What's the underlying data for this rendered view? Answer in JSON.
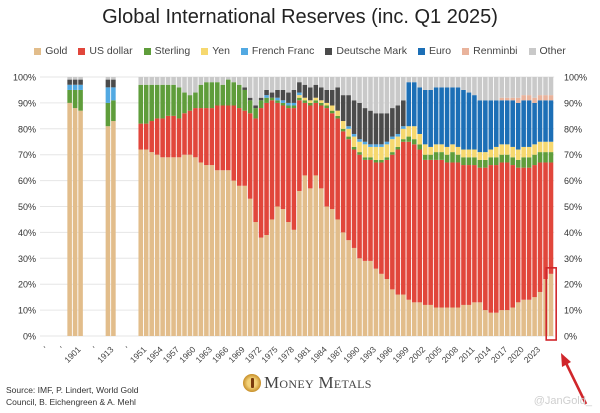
{
  "chart_data": {
    "type": "bar",
    "stacked": true,
    "title": "Global International Reserves (inc. Q1 2025)",
    "ylim": [
      0,
      100
    ],
    "y_ticks": [
      "0%",
      "10%",
      "20%",
      "30%",
      "40%",
      "50%",
      "60%",
      "70%",
      "80%",
      "90%",
      "100%"
    ],
    "grid": true,
    "legend_position": "top",
    "series": [
      {
        "name": "Gold",
        "color": "#E2BD8B"
      },
      {
        "name": "US dollar",
        "color": "#E1463B"
      },
      {
        "name": "Sterling",
        "color": "#5F9D3B"
      },
      {
        "name": "Yen",
        "color": "#F6D86F"
      },
      {
        "name": "French Franc",
        "color": "#52A9E2"
      },
      {
        "name": "Deutsche Mark",
        "color": "#4B4B4B"
      },
      {
        "name": "Euro",
        "color": "#1C6FB6"
      },
      {
        "name": "Renminbi",
        "color": "#E9B39C"
      },
      {
        "name": "Other",
        "color": "#C9C9C9"
      }
    ],
    "x_tick_labels": [
      "'",
      "'",
      "1901",
      "'",
      "1913",
      "'",
      "1951",
      "1954",
      "1957",
      "1960",
      "1963",
      "1966",
      "1969",
      "1972",
      "1975",
      "1978",
      "1981",
      "1984",
      "1987",
      "1990",
      "1993",
      "1996",
      "1999",
      "2002",
      "2005",
      "2008",
      "2011",
      "2014",
      "2017",
      "2020",
      "2023"
    ],
    "bars": [
      {
        "year": 1899,
        "values": [
          90,
          0,
          5,
          0,
          2,
          2,
          0,
          0,
          1
        ]
      },
      {
        "year": 1900,
        "values": [
          88,
          0,
          7,
          0,
          2,
          2,
          0,
          0,
          1
        ]
      },
      {
        "year": 1901,
        "values": [
          87,
          0,
          8,
          0,
          2,
          2,
          0,
          0,
          1
        ]
      },
      {
        "year": 1912,
        "values": [
          81,
          0,
          9,
          0,
          6,
          3,
          0,
          0,
          1
        ]
      },
      {
        "year": 1913,
        "values": [
          83,
          0,
          8,
          0,
          5,
          3,
          0,
          0,
          1
        ]
      },
      {
        "year": 1950,
        "values": [
          72,
          10,
          15,
          0,
          0,
          0,
          0,
          0,
          3
        ]
      },
      {
        "year": 1951,
        "values": [
          72,
          10,
          15,
          0,
          0,
          0,
          0,
          0,
          3
        ]
      },
      {
        "year": 1952,
        "values": [
          71,
          12,
          14,
          0,
          0,
          0,
          0,
          0,
          3
        ]
      },
      {
        "year": 1953,
        "values": [
          70,
          14,
          13,
          0,
          0,
          0,
          0,
          0,
          3
        ]
      },
      {
        "year": 1954,
        "values": [
          69,
          15,
          13,
          0,
          0,
          0,
          0,
          0,
          3
        ]
      },
      {
        "year": 1955,
        "values": [
          69,
          16,
          12,
          0,
          0,
          0,
          0,
          0,
          3
        ]
      },
      {
        "year": 1956,
        "values": [
          69,
          16,
          12,
          0,
          0,
          0,
          0,
          0,
          3
        ]
      },
      {
        "year": 1957,
        "values": [
          69,
          15,
          12,
          0,
          0,
          0,
          0,
          0,
          4
        ]
      },
      {
        "year": 1958,
        "values": [
          70,
          16,
          8,
          0,
          0,
          0,
          0,
          0,
          6
        ]
      },
      {
        "year": 1959,
        "values": [
          70,
          17,
          6,
          0,
          0,
          0,
          0,
          0,
          7
        ]
      },
      {
        "year": 1960,
        "values": [
          69,
          19,
          6,
          0,
          0,
          0,
          0,
          0,
          6
        ]
      },
      {
        "year": 1961,
        "values": [
          67,
          21,
          9,
          0,
          0,
          0,
          0,
          0,
          3
        ]
      },
      {
        "year": 1962,
        "values": [
          66,
          22,
          10,
          0,
          0,
          0,
          0,
          0,
          2
        ]
      },
      {
        "year": 1963,
        "values": [
          66,
          22,
          10,
          0,
          0,
          0,
          0,
          0,
          2
        ]
      },
      {
        "year": 1964,
        "values": [
          64,
          25,
          9,
          0,
          0,
          0,
          0,
          0,
          2
        ]
      },
      {
        "year": 1965,
        "values": [
          64,
          25,
          8,
          0,
          0,
          0,
          0,
          0,
          3
        ]
      },
      {
        "year": 1966,
        "values": [
          64,
          25,
          10,
          0,
          0,
          0,
          0,
          0,
          1
        ]
      },
      {
        "year": 1967,
        "values": [
          60,
          29,
          9,
          0,
          0,
          0,
          0,
          0,
          2
        ]
      },
      {
        "year": 1968,
        "values": [
          58,
          30,
          9,
          0,
          0,
          0,
          0,
          0,
          3
        ]
      },
      {
        "year": 1969,
        "values": [
          58,
          29,
          8,
          0,
          0,
          1,
          0,
          0,
          4
        ]
      },
      {
        "year": 1970,
        "values": [
          53,
          33,
          5,
          0,
          0,
          1,
          0,
          0,
          8
        ]
      },
      {
        "year": 1971,
        "values": [
          44,
          40,
          4,
          0,
          0,
          1,
          0,
          0,
          11
        ]
      },
      {
        "year": 1972,
        "values": [
          38,
          50,
          3,
          0,
          0,
          1,
          0,
          0,
          8
        ]
      },
      {
        "year": 1973,
        "values": [
          39,
          51,
          2,
          0,
          1,
          2,
          0,
          0,
          5
        ]
      },
      {
        "year": 1974,
        "values": [
          45,
          46,
          1,
          0,
          0,
          2,
          0,
          0,
          6
        ]
      },
      {
        "year": 1975,
        "values": [
          50,
          40,
          1,
          0,
          1,
          3,
          0,
          0,
          5
        ]
      },
      {
        "year": 1976,
        "values": [
          49,
          40,
          1,
          0,
          1,
          4,
          0,
          0,
          5
        ]
      },
      {
        "year": 1977,
        "values": [
          44,
          44,
          1,
          0,
          1,
          4,
          0,
          0,
          6
        ]
      },
      {
        "year": 1978,
        "values": [
          41,
          47,
          1,
          0,
          1,
          5,
          0,
          0,
          5
        ]
      },
      {
        "year": 1979,
        "values": [
          56,
          35,
          1,
          1,
          1,
          4,
          0,
          0,
          2
        ]
      },
      {
        "year": 1980,
        "values": [
          62,
          28,
          1,
          1,
          0,
          5,
          0,
          0,
          3
        ]
      },
      {
        "year": 1981,
        "values": [
          57,
          32,
          1,
          1,
          0,
          5,
          0,
          0,
          4
        ]
      },
      {
        "year": 1982,
        "values": [
          62,
          28,
          1,
          1,
          0,
          5,
          0,
          0,
          3
        ]
      },
      {
        "year": 1983,
        "values": [
          57,
          32,
          1,
          1,
          0,
          5,
          0,
          0,
          4
        ]
      },
      {
        "year": 1984,
        "values": [
          50,
          38,
          1,
          1,
          0,
          5,
          0,
          0,
          5
        ]
      },
      {
        "year": 1985,
        "values": [
          49,
          37,
          1,
          2,
          0,
          6,
          0,
          0,
          5
        ]
      },
      {
        "year": 1986,
        "values": [
          45,
          39,
          1,
          2,
          0,
          9,
          0,
          0,
          4
        ]
      },
      {
        "year": 1987,
        "values": [
          40,
          39,
          1,
          3,
          0,
          10,
          0,
          0,
          7
        ]
      },
      {
        "year": 1988,
        "values": [
          37,
          39,
          1,
          3,
          1,
          12,
          0,
          0,
          7
        ]
      },
      {
        "year": 1989,
        "values": [
          34,
          38,
          1,
          4,
          1,
          13,
          0,
          0,
          9
        ]
      },
      {
        "year": 1990,
        "values": [
          30,
          40,
          1,
          4,
          1,
          14,
          0,
          0,
          10
        ]
      },
      {
        "year": 1991,
        "values": [
          29,
          39,
          1,
          5,
          1,
          13,
          0,
          0,
          12
        ]
      },
      {
        "year": 1992,
        "values": [
          29,
          39,
          1,
          4,
          1,
          13,
          0,
          0,
          13
        ]
      },
      {
        "year": 1993,
        "values": [
          26,
          41,
          1,
          5,
          1,
          12,
          0,
          0,
          14
        ]
      },
      {
        "year": 1994,
        "values": [
          24,
          43,
          1,
          5,
          1,
          12,
          0,
          0,
          14
        ]
      },
      {
        "year": 1995,
        "values": [
          22,
          46,
          1,
          5,
          1,
          11,
          0,
          0,
          14
        ]
      },
      {
        "year": 1996,
        "values": [
          18,
          52,
          1,
          5,
          1,
          11,
          0,
          0,
          12
        ]
      },
      {
        "year": 1997,
        "values": [
          16,
          56,
          1,
          4,
          1,
          11,
          0,
          0,
          11
        ]
      },
      {
        "year": 1998,
        "values": [
          16,
          59,
          1,
          4,
          1,
          10,
          0,
          0,
          9
        ]
      },
      {
        "year": 1999,
        "values": [
          14,
          61,
          2,
          4,
          0,
          0,
          17,
          0,
          2
        ]
      },
      {
        "year": 2000,
        "values": [
          13,
          61,
          2,
          5,
          0,
          0,
          17,
          0,
          2
        ]
      },
      {
        "year": 2001,
        "values": [
          13,
          59,
          2,
          4,
          0,
          0,
          18,
          0,
          4
        ]
      },
      {
        "year": 2002,
        "values": [
          12,
          56,
          2,
          4,
          0,
          0,
          21,
          0,
          5
        ]
      },
      {
        "year": 2003,
        "values": [
          12,
          56,
          2,
          3,
          0,
          0,
          22,
          0,
          5
        ]
      },
      {
        "year": 2004,
        "values": [
          11,
          57,
          3,
          3,
          0,
          0,
          22,
          0,
          4
        ]
      },
      {
        "year": 2005,
        "values": [
          11,
          57,
          3,
          3,
          0,
          0,
          22,
          0,
          4
        ]
      },
      {
        "year": 2006,
        "values": [
          11,
          56,
          3,
          3,
          0,
          0,
          23,
          0,
          4
        ]
      },
      {
        "year": 2007,
        "values": [
          11,
          56,
          4,
          3,
          0,
          0,
          22,
          0,
          4
        ]
      },
      {
        "year": 2008,
        "values": [
          11,
          56,
          3,
          3,
          0,
          0,
          23,
          0,
          4
        ]
      },
      {
        "year": 2009,
        "values": [
          12,
          54,
          3,
          3,
          0,
          0,
          23,
          0,
          5
        ]
      },
      {
        "year": 2010,
        "values": [
          12,
          54,
          3,
          3,
          0,
          0,
          22,
          0,
          6
        ]
      },
      {
        "year": 2011,
        "values": [
          13,
          53,
          3,
          3,
          0,
          0,
          21,
          0,
          7
        ]
      },
      {
        "year": 2012,
        "values": [
          13,
          52,
          3,
          3,
          0,
          0,
          20,
          0,
          9
        ]
      },
      {
        "year": 2013,
        "values": [
          10,
          55,
          3,
          3,
          0,
          0,
          20,
          0,
          9
        ]
      },
      {
        "year": 2014,
        "values": [
          9,
          57,
          3,
          3,
          0,
          0,
          19,
          0,
          9
        ]
      },
      {
        "year": 2015,
        "values": [
          9,
          57,
          3,
          4,
          0,
          0,
          18,
          0,
          9
        ]
      },
      {
        "year": 2016,
        "values": [
          10,
          57,
          3,
          4,
          0,
          0,
          17,
          1,
          8
        ]
      },
      {
        "year": 2017,
        "values": [
          10,
          57,
          3,
          4,
          0,
          0,
          17,
          1,
          8
        ]
      },
      {
        "year": 2018,
        "values": [
          11,
          55,
          3,
          4,
          0,
          0,
          18,
          1,
          8
        ]
      },
      {
        "year": 2019,
        "values": [
          13,
          52,
          3,
          4,
          0,
          0,
          18,
          2,
          8
        ]
      },
      {
        "year": 2020,
        "values": [
          14,
          51,
          4,
          4,
          0,
          0,
          18,
          2,
          7
        ]
      },
      {
        "year": 2021,
        "values": [
          14,
          51,
          4,
          4,
          0,
          0,
          18,
          2,
          7
        ]
      },
      {
        "year": 2022,
        "values": [
          15,
          51,
          4,
          4,
          0,
          0,
          16,
          2,
          8
        ]
      },
      {
        "year": 2023,
        "values": [
          17,
          50,
          4,
          4,
          0,
          0,
          16,
          2,
          7
        ]
      },
      {
        "year": 2024,
        "values": [
          22,
          45,
          4,
          4,
          0,
          0,
          16,
          2,
          7
        ]
      },
      {
        "year": 2025,
        "values": [
          24,
          43,
          4,
          4,
          0,
          0,
          16,
          2,
          7
        ]
      }
    ],
    "annotation": {
      "highlighted_year": 2025,
      "highlight_color": "#D0262B"
    }
  },
  "footer": {
    "source_line1": "Source: IMF, P. Lindert, World Gold",
    "source_line2": "Council, B. Eichengreen & A. Mehl",
    "logo_text": "Money Metals",
    "logo_mark": "®",
    "handle": "@JanGold_"
  }
}
